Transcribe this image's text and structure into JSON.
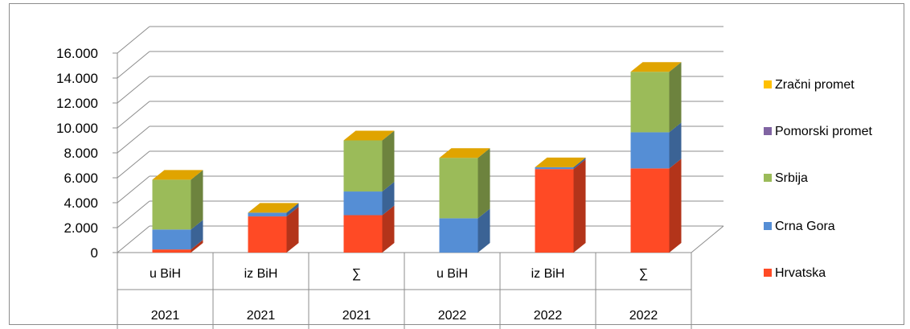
{
  "chart_data": {
    "type": "bar",
    "stacked": true,
    "three_d": true,
    "categories": [
      {
        "label": "u BiH",
        "year": "2021"
      },
      {
        "label": "iz BiH",
        "year": "2021"
      },
      {
        "label": "∑",
        "year": "2021"
      },
      {
        "label": "u BiH",
        "year": "2022"
      },
      {
        "label": "iz BiH",
        "year": "2022"
      },
      {
        "label": "∑",
        "year": "2022"
      }
    ],
    "series": [
      {
        "name": "Hrvatska",
        "color": "#ff4a25",
        "values": [
          250,
          2900,
          3000,
          0,
          6700,
          6750
        ]
      },
      {
        "name": "Crna Gora",
        "color": "#558ed5",
        "values": [
          1600,
          300,
          1900,
          2750,
          150,
          2900
        ]
      },
      {
        "name": "Srbija",
        "color": "#9bbb59",
        "values": [
          4000,
          0,
          4100,
          4850,
          0,
          4850
        ]
      },
      {
        "name": "Pomorski promet",
        "color": "#8064a2",
        "values": [
          0,
          0,
          0,
          0,
          0,
          0
        ]
      },
      {
        "name": "Zračni promet",
        "color": "#ffc000",
        "values": [
          0,
          0,
          0,
          0,
          0,
          0
        ]
      }
    ],
    "ylim": [
      0,
      16000
    ],
    "yticks": [
      "0",
      "2.000",
      "4.000",
      "6.000",
      "8.000",
      "10.000",
      "12.000",
      "14.000",
      "16.000"
    ],
    "title": "",
    "xlabel": "",
    "ylabel": "",
    "grid": true,
    "legend_position": "right"
  }
}
